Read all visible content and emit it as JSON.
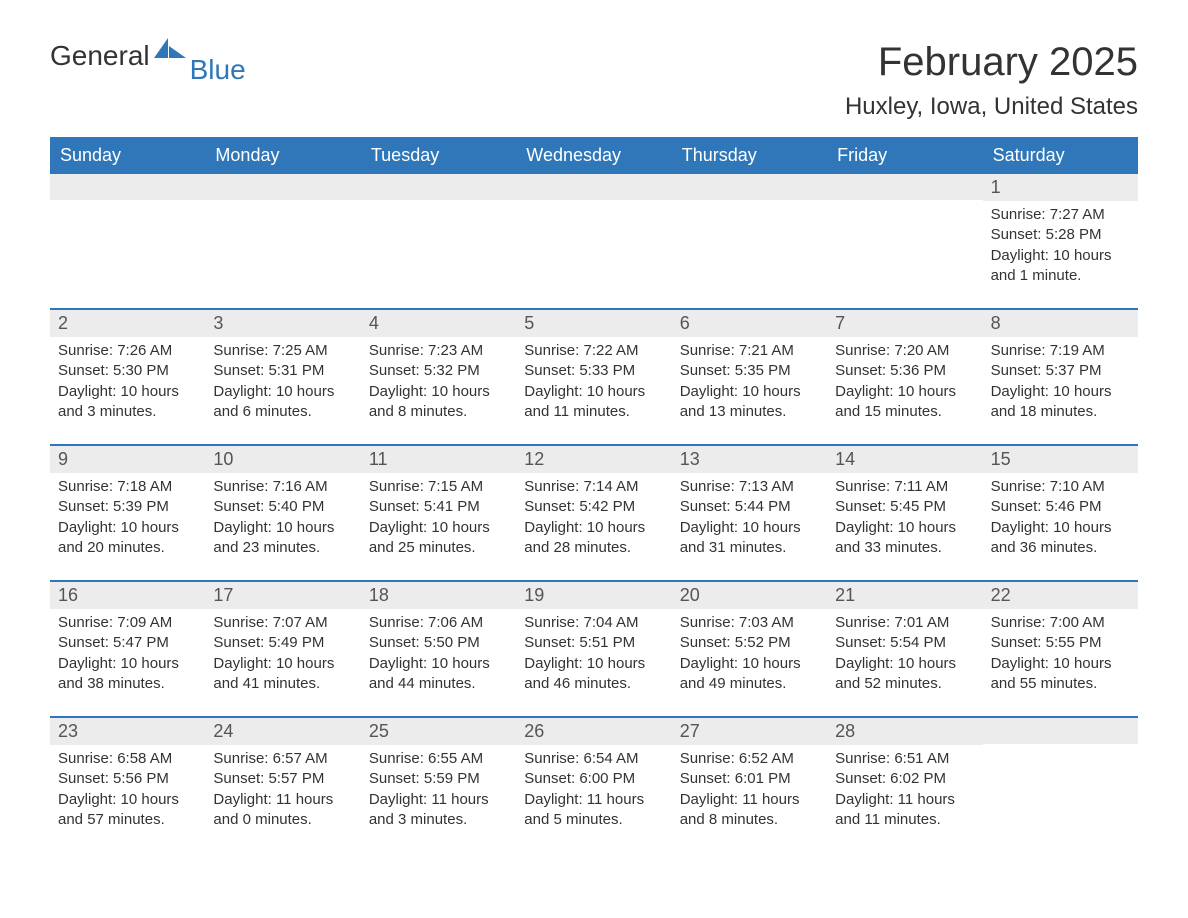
{
  "logo": {
    "word1": "General",
    "word2": "Blue",
    "brand_color": "#2f77b9",
    "text_color": "#333333"
  },
  "title": {
    "month": "February 2025",
    "location": "Huxley, Iowa, United States"
  },
  "colors": {
    "header_bg": "#2f77b9",
    "header_text": "#ffffff",
    "row_separator": "#2f77b9",
    "daynum_bg": "#ececec",
    "body_text": "#333333",
    "page_bg": "#ffffff"
  },
  "weekdays": [
    "Sunday",
    "Monday",
    "Tuesday",
    "Wednesday",
    "Thursday",
    "Friday",
    "Saturday"
  ],
  "weeks": [
    [
      {
        "day": "",
        "sunrise": "",
        "sunset": "",
        "daylight": ""
      },
      {
        "day": "",
        "sunrise": "",
        "sunset": "",
        "daylight": ""
      },
      {
        "day": "",
        "sunrise": "",
        "sunset": "",
        "daylight": ""
      },
      {
        "day": "",
        "sunrise": "",
        "sunset": "",
        "daylight": ""
      },
      {
        "day": "",
        "sunrise": "",
        "sunset": "",
        "daylight": ""
      },
      {
        "day": "",
        "sunrise": "",
        "sunset": "",
        "daylight": ""
      },
      {
        "day": "1",
        "sunrise": "Sunrise: 7:27 AM",
        "sunset": "Sunset: 5:28 PM",
        "daylight": "Daylight: 10 hours and 1 minute."
      }
    ],
    [
      {
        "day": "2",
        "sunrise": "Sunrise: 7:26 AM",
        "sunset": "Sunset: 5:30 PM",
        "daylight": "Daylight: 10 hours and 3 minutes."
      },
      {
        "day": "3",
        "sunrise": "Sunrise: 7:25 AM",
        "sunset": "Sunset: 5:31 PM",
        "daylight": "Daylight: 10 hours and 6 minutes."
      },
      {
        "day": "4",
        "sunrise": "Sunrise: 7:23 AM",
        "sunset": "Sunset: 5:32 PM",
        "daylight": "Daylight: 10 hours and 8 minutes."
      },
      {
        "day": "5",
        "sunrise": "Sunrise: 7:22 AM",
        "sunset": "Sunset: 5:33 PM",
        "daylight": "Daylight: 10 hours and 11 minutes."
      },
      {
        "day": "6",
        "sunrise": "Sunrise: 7:21 AM",
        "sunset": "Sunset: 5:35 PM",
        "daylight": "Daylight: 10 hours and 13 minutes."
      },
      {
        "day": "7",
        "sunrise": "Sunrise: 7:20 AM",
        "sunset": "Sunset: 5:36 PM",
        "daylight": "Daylight: 10 hours and 15 minutes."
      },
      {
        "day": "8",
        "sunrise": "Sunrise: 7:19 AM",
        "sunset": "Sunset: 5:37 PM",
        "daylight": "Daylight: 10 hours and 18 minutes."
      }
    ],
    [
      {
        "day": "9",
        "sunrise": "Sunrise: 7:18 AM",
        "sunset": "Sunset: 5:39 PM",
        "daylight": "Daylight: 10 hours and 20 minutes."
      },
      {
        "day": "10",
        "sunrise": "Sunrise: 7:16 AM",
        "sunset": "Sunset: 5:40 PM",
        "daylight": "Daylight: 10 hours and 23 minutes."
      },
      {
        "day": "11",
        "sunrise": "Sunrise: 7:15 AM",
        "sunset": "Sunset: 5:41 PM",
        "daylight": "Daylight: 10 hours and 25 minutes."
      },
      {
        "day": "12",
        "sunrise": "Sunrise: 7:14 AM",
        "sunset": "Sunset: 5:42 PM",
        "daylight": "Daylight: 10 hours and 28 minutes."
      },
      {
        "day": "13",
        "sunrise": "Sunrise: 7:13 AM",
        "sunset": "Sunset: 5:44 PM",
        "daylight": "Daylight: 10 hours and 31 minutes."
      },
      {
        "day": "14",
        "sunrise": "Sunrise: 7:11 AM",
        "sunset": "Sunset: 5:45 PM",
        "daylight": "Daylight: 10 hours and 33 minutes."
      },
      {
        "day": "15",
        "sunrise": "Sunrise: 7:10 AM",
        "sunset": "Sunset: 5:46 PM",
        "daylight": "Daylight: 10 hours and 36 minutes."
      }
    ],
    [
      {
        "day": "16",
        "sunrise": "Sunrise: 7:09 AM",
        "sunset": "Sunset: 5:47 PM",
        "daylight": "Daylight: 10 hours and 38 minutes."
      },
      {
        "day": "17",
        "sunrise": "Sunrise: 7:07 AM",
        "sunset": "Sunset: 5:49 PM",
        "daylight": "Daylight: 10 hours and 41 minutes."
      },
      {
        "day": "18",
        "sunrise": "Sunrise: 7:06 AM",
        "sunset": "Sunset: 5:50 PM",
        "daylight": "Daylight: 10 hours and 44 minutes."
      },
      {
        "day": "19",
        "sunrise": "Sunrise: 7:04 AM",
        "sunset": "Sunset: 5:51 PM",
        "daylight": "Daylight: 10 hours and 46 minutes."
      },
      {
        "day": "20",
        "sunrise": "Sunrise: 7:03 AM",
        "sunset": "Sunset: 5:52 PM",
        "daylight": "Daylight: 10 hours and 49 minutes."
      },
      {
        "day": "21",
        "sunrise": "Sunrise: 7:01 AM",
        "sunset": "Sunset: 5:54 PM",
        "daylight": "Daylight: 10 hours and 52 minutes."
      },
      {
        "day": "22",
        "sunrise": "Sunrise: 7:00 AM",
        "sunset": "Sunset: 5:55 PM",
        "daylight": "Daylight: 10 hours and 55 minutes."
      }
    ],
    [
      {
        "day": "23",
        "sunrise": "Sunrise: 6:58 AM",
        "sunset": "Sunset: 5:56 PM",
        "daylight": "Daylight: 10 hours and 57 minutes."
      },
      {
        "day": "24",
        "sunrise": "Sunrise: 6:57 AM",
        "sunset": "Sunset: 5:57 PM",
        "daylight": "Daylight: 11 hours and 0 minutes."
      },
      {
        "day": "25",
        "sunrise": "Sunrise: 6:55 AM",
        "sunset": "Sunset: 5:59 PM",
        "daylight": "Daylight: 11 hours and 3 minutes."
      },
      {
        "day": "26",
        "sunrise": "Sunrise: 6:54 AM",
        "sunset": "Sunset: 6:00 PM",
        "daylight": "Daylight: 11 hours and 5 minutes."
      },
      {
        "day": "27",
        "sunrise": "Sunrise: 6:52 AM",
        "sunset": "Sunset: 6:01 PM",
        "daylight": "Daylight: 11 hours and 8 minutes."
      },
      {
        "day": "28",
        "sunrise": "Sunrise: 6:51 AM",
        "sunset": "Sunset: 6:02 PM",
        "daylight": "Daylight: 11 hours and 11 minutes."
      },
      {
        "day": "",
        "sunrise": "",
        "sunset": "",
        "daylight": ""
      }
    ]
  ]
}
